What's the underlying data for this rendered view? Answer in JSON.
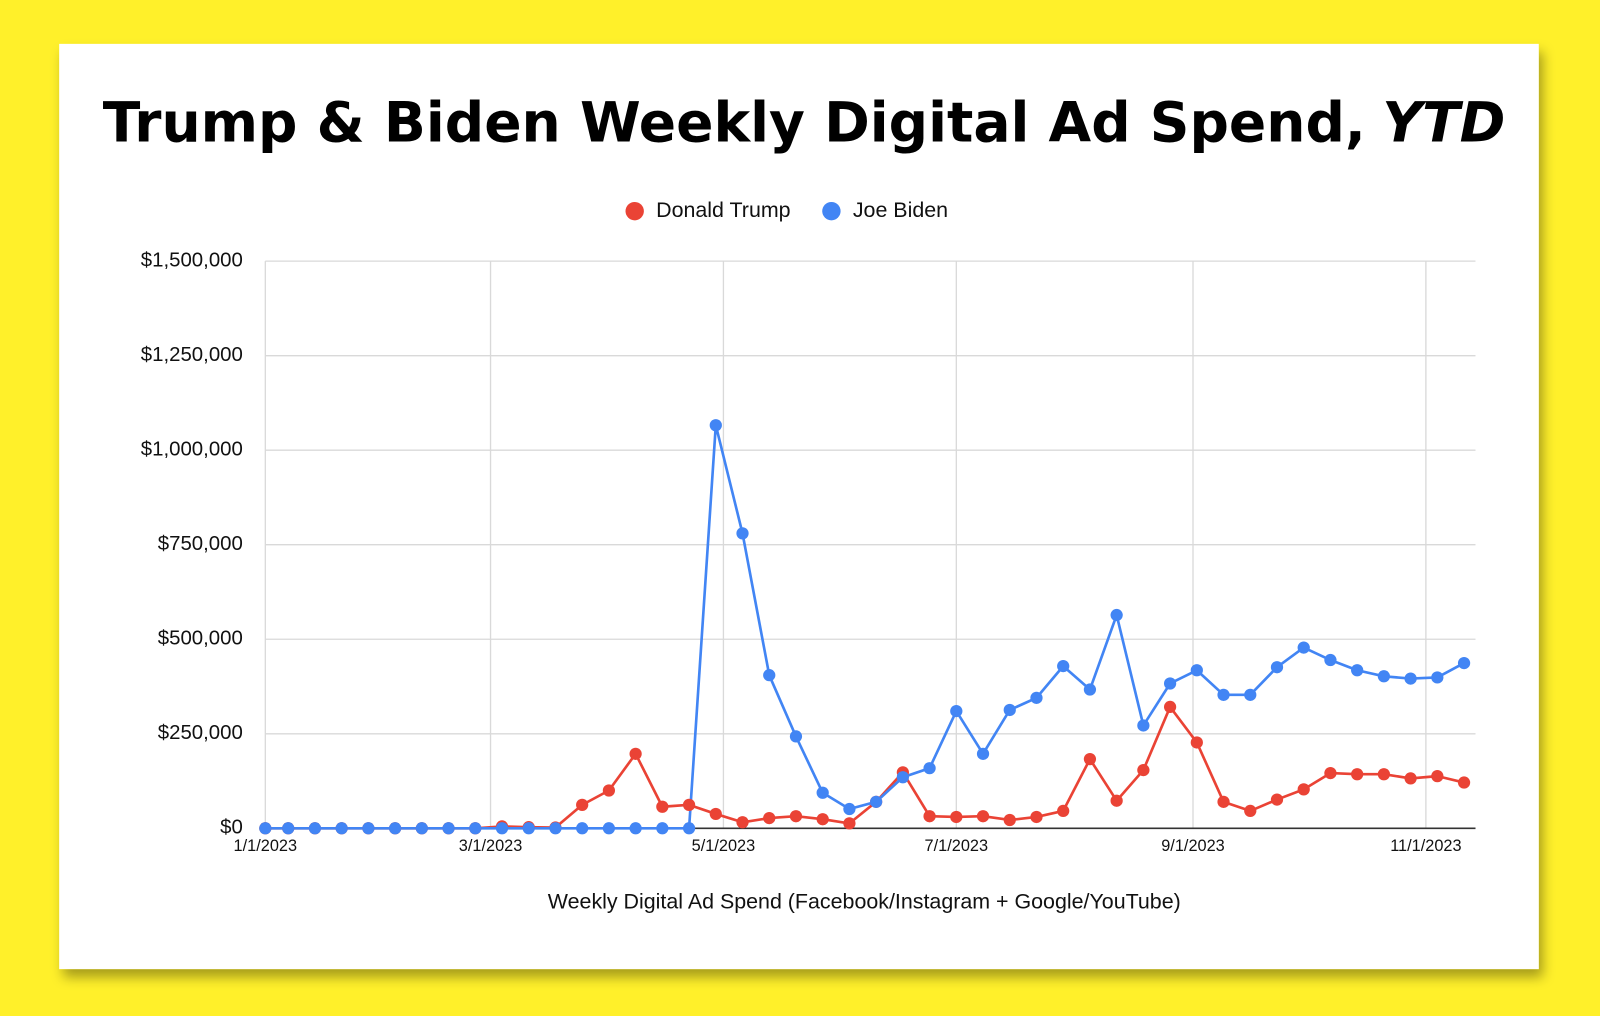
{
  "chart_data": {
    "type": "line",
    "title": "Trump & Biden Weekly Digital Ad Spend,",
    "title_italic": "YTD",
    "x_label": "Weekly Digital Ad Spend (Facebook/Instagram + Google/YouTube)",
    "x": [
      "1/1/2023",
      "1/7/2023",
      "1/14/2023",
      "1/21/2023",
      "1/28/2023",
      "2/4/2023",
      "2/11/2023",
      "2/18/2023",
      "2/25/2023",
      "3/4/2023",
      "3/11/2023",
      "3/18/2023",
      "3/25/2023",
      "4/1/2023",
      "4/8/2023",
      "4/15/2023",
      "4/22/2023",
      "4/29/2023",
      "5/6/2023",
      "5/13/2023",
      "5/20/2023",
      "5/27/2023",
      "6/3/2023",
      "6/10/2023",
      "6/17/2023",
      "6/24/2023",
      "7/1/2023",
      "7/8/2023",
      "7/15/2023",
      "7/22/2023",
      "7/29/2023",
      "8/5/2023",
      "8/12/2023",
      "8/19/2023",
      "8/26/2023",
      "9/2/2023",
      "9/9/2023",
      "9/16/2023",
      "9/23/2023",
      "9/30/2023",
      "10/7/2023",
      "10/14/2023",
      "10/21/2023",
      "10/28/2023",
      "11/4/2023",
      "11/11/2023"
    ],
    "series": [
      {
        "name": "Donald Trump",
        "color": "#ea4335",
        "values": [
          0,
          0,
          0,
          0,
          0,
          0,
          0,
          0,
          0,
          5000,
          3000,
          2000,
          62000,
          100000,
          197000,
          57000,
          62000,
          38000,
          16000,
          27000,
          32000,
          24000,
          13000,
          70000,
          148000,
          32000,
          30000,
          32000,
          22000,
          30000,
          46000,
          183000,
          73000,
          154000,
          321000,
          227000,
          70000,
          46000,
          76000,
          103000,
          146000,
          143000,
          143000,
          132000,
          138000,
          121000
        ]
      },
      {
        "name": "Joe Biden",
        "color": "#4285f4",
        "values": [
          0,
          0,
          0,
          0,
          0,
          0,
          0,
          0,
          0,
          0,
          0,
          0,
          0,
          0,
          0,
          0,
          0,
          1066000,
          780000,
          405000,
          243000,
          94000,
          51000,
          70000,
          135000,
          159000,
          310000,
          197000,
          313000,
          345000,
          429000,
          367000,
          564000,
          272000,
          383000,
          418000,
          353000,
          353000,
          426000,
          478000,
          445000,
          418000,
          402000,
          396000,
          399000,
          437000
        ]
      }
    ],
    "xlim": [
      "1/1/2023",
      "11/14/2023"
    ],
    "xticks": [
      "1/1/2023",
      "3/1/2023",
      "5/1/2023",
      "7/1/2023",
      "9/1/2023",
      "11/1/2023"
    ],
    "ylim": [
      0,
      1500000
    ],
    "yticks": [
      {
        "value": 0,
        "label": "$0"
      },
      {
        "value": 250000,
        "label": "$250,000"
      },
      {
        "value": 500000,
        "label": "$500,000"
      },
      {
        "value": 750000,
        "label": "$750,000"
      },
      {
        "value": 1000000,
        "label": "$1,000,000"
      },
      {
        "value": 1250000,
        "label": "$1,250,000"
      },
      {
        "value": 1500000,
        "label": "$1,500,000"
      }
    ],
    "grid": true,
    "legend": "top"
  }
}
